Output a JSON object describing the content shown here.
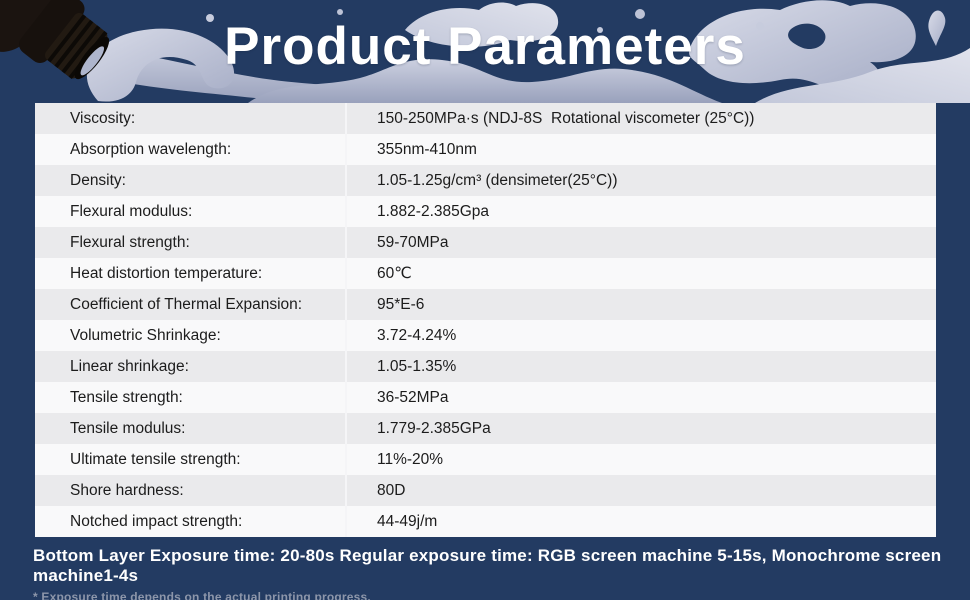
{
  "title": "Product Parameters",
  "table": {
    "rows": [
      {
        "label": "Viscosity:",
        "value": "150-250MPa·s (NDJ-8S  Rotational viscometer (25°C))"
      },
      {
        "label": "Absorption wavelength:",
        "value": "355nm-410nm"
      },
      {
        "label": "Density:",
        "value": "1.05-1.25g/cm³ (densimeter(25°C))"
      },
      {
        "label": "Flexural modulus:",
        "value": "1.882-2.385Gpa"
      },
      {
        "label": "Flexural strength:",
        "value": "59-70MPa"
      },
      {
        "label": "Heat distortion temperature:",
        "value": "60℃"
      },
      {
        "label": "Coefficient of Thermal Expansion:",
        "value": "95*E-6"
      },
      {
        "label": "Volumetric Shrinkage:",
        "value": "3.72-4.24%"
      },
      {
        "label": "Linear shrinkage:",
        "value": "1.05-1.35%"
      },
      {
        "label": "Tensile strength:",
        "value": "36-52MPa"
      },
      {
        "label": "Tensile modulus:",
        "value": "1.779-2.385GPa"
      },
      {
        "label": "Ultimate tensile strength:",
        "value": "11%-20%"
      },
      {
        "label": "Shore hardness:",
        "value": "80D"
      },
      {
        "label": "Notched impact strength:",
        "value": "44-49j/m"
      }
    ]
  },
  "footer": {
    "exposure_line": "Bottom Layer Exposure time: 20-80s Regular exposure time: RGB screen machine 5-15s, Monochrome screen machine1-4s",
    "note": "* Exposure time depends on the actual printing progress."
  },
  "icons": {
    "bottle": "resin-bottle-pouring-icon",
    "splash": "liquid-splash-icon"
  },
  "colors": {
    "background": "#233B62",
    "row_odd": "#EAEAEC",
    "row_even": "#F9F9FA",
    "divider": "#F5F5F7",
    "text": "#1C1C1C",
    "title": "#FFFFFF",
    "note": "#8D96AA",
    "splash_light": "#D6D9E6",
    "splash_mid": "#B4BBD1",
    "splash_dark": "#98A0BB",
    "bottle_dark": "#1B1410"
  }
}
